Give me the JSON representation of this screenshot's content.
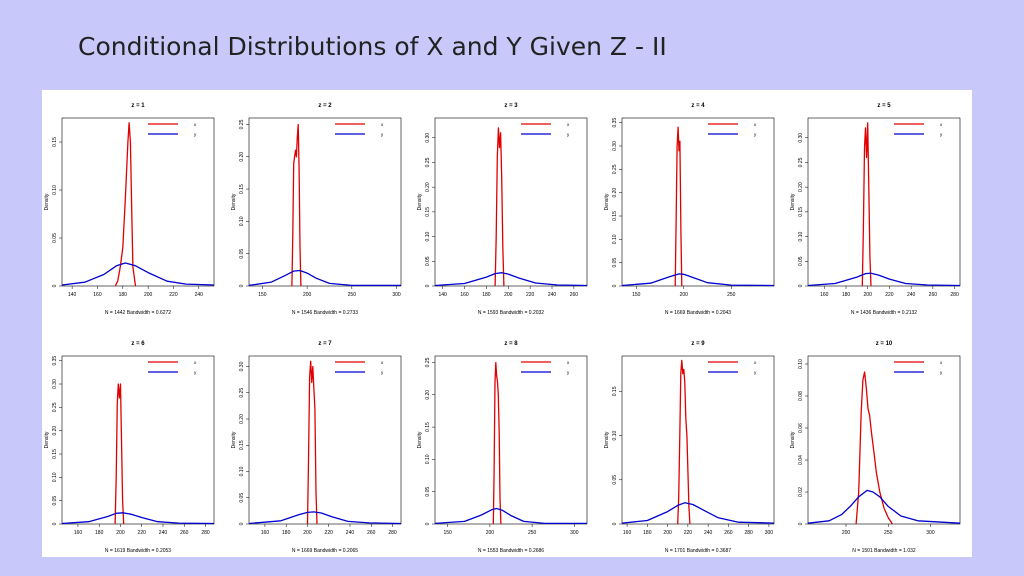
{
  "slide": {
    "title": "Conditional Distributions of X and Y Given Z - II"
  },
  "legend_entries": [
    "x",
    "y"
  ],
  "chart_data": [
    {
      "type": "line",
      "title": "z = 1",
      "ylabel": "Density",
      "subtitle": "N = 1442   Bandwidth = 0.6272",
      "xticks": [
        140,
        160,
        180,
        200,
        220,
        240
      ],
      "xlim": [
        132,
        252
      ],
      "yticks": [
        0.0,
        0.05,
        0.1,
        0.15
      ],
      "ylim": [
        0,
        0.175
      ],
      "series": [
        {
          "name": "x",
          "color": "#e00000",
          "x": [
            174,
            176,
            178,
            180,
            182,
            184,
            185,
            186,
            187,
            188,
            190
          ],
          "y": [
            0,
            0.005,
            0.02,
            0.04,
            0.09,
            0.15,
            0.17,
            0.15,
            0.08,
            0.02,
            0
          ]
        },
        {
          "name": "y",
          "color": "#0000d0",
          "x": [
            132,
            150,
            165,
            175,
            182,
            190,
            200,
            215,
            230,
            252
          ],
          "y": [
            0.001,
            0.004,
            0.012,
            0.021,
            0.024,
            0.021,
            0.014,
            0.005,
            0.002,
            0.001
          ]
        }
      ]
    },
    {
      "type": "line",
      "title": "z = 2",
      "ylabel": "Density",
      "subtitle": "N = 1546   Bandwidth = 0.2733",
      "xticks": [
        150,
        200,
        250,
        300
      ],
      "xlim": [
        135,
        305
      ],
      "yticks": [
        0.0,
        0.05,
        0.1,
        0.15,
        0.2,
        0.25
      ],
      "ylim": [
        0,
        0.26
      ],
      "series": [
        {
          "name": "x",
          "color": "#e00000",
          "x": [
            183,
            184,
            185,
            186,
            187,
            188,
            189,
            190,
            191,
            192,
            193
          ],
          "y": [
            0,
            0.08,
            0.19,
            0.2,
            0.21,
            0.2,
            0.23,
            0.25,
            0.18,
            0.06,
            0
          ]
        },
        {
          "name": "y",
          "color": "#0000d0",
          "x": [
            135,
            160,
            175,
            185,
            192,
            200,
            210,
            225,
            250,
            305
          ],
          "y": [
            0.001,
            0.006,
            0.016,
            0.023,
            0.024,
            0.02,
            0.012,
            0.004,
            0.001,
            0.001
          ]
        }
      ]
    },
    {
      "type": "line",
      "title": "z = 3",
      "ylabel": "Density",
      "subtitle": "N = 1593   Bandwidth = 0.2032",
      "xticks": [
        140,
        160,
        180,
        200,
        220,
        240,
        260
      ],
      "xlim": [
        133,
        272
      ],
      "yticks": [
        0.0,
        0.05,
        0.1,
        0.15,
        0.2,
        0.25,
        0.3
      ],
      "ylim": [
        0,
        0.34
      ],
      "series": [
        {
          "name": "x",
          "color": "#e00000",
          "x": [
            188,
            189,
            190,
            191,
            192,
            193,
            194,
            195,
            196
          ],
          "y": [
            0,
            0.1,
            0.26,
            0.32,
            0.28,
            0.31,
            0.22,
            0.08,
            0
          ]
        },
        {
          "name": "y",
          "color": "#0000d0",
          "x": [
            133,
            160,
            180,
            188,
            194,
            200,
            210,
            225,
            245,
            272
          ],
          "y": [
            0.001,
            0.005,
            0.018,
            0.025,
            0.027,
            0.024,
            0.016,
            0.006,
            0.002,
            0.001
          ]
        }
      ]
    },
    {
      "type": "line",
      "title": "z = 4",
      "ylabel": "Density",
      "subtitle": "N = 1669   Bandwidth = 0.2043",
      "xticks": [
        150,
        200,
        250
      ],
      "xlim": [
        135,
        295
      ],
      "yticks": [
        0.0,
        0.05,
        0.1,
        0.15,
        0.2,
        0.25,
        0.3,
        0.35
      ],
      "ylim": [
        0,
        0.36
      ],
      "series": [
        {
          "name": "x",
          "color": "#e00000",
          "x": [
            191,
            192,
            193,
            194,
            195,
            196,
            197,
            198
          ],
          "y": [
            0,
            0.15,
            0.3,
            0.34,
            0.29,
            0.31,
            0.12,
            0
          ]
        },
        {
          "name": "y",
          "color": "#0000d0",
          "x": [
            135,
            165,
            185,
            195,
            200,
            210,
            225,
            250,
            295
          ],
          "y": [
            0.001,
            0.006,
            0.02,
            0.026,
            0.025,
            0.018,
            0.007,
            0.002,
            0.001
          ]
        }
      ]
    },
    {
      "type": "line",
      "title": "z = 5",
      "ylabel": "Density",
      "subtitle": "N = 1436   Bandwidth = 0.2132",
      "xticks": [
        160,
        180,
        200,
        220,
        240,
        260,
        280
      ],
      "xlim": [
        145,
        285
      ],
      "yticks": [
        0.0,
        0.05,
        0.1,
        0.15,
        0.2,
        0.25,
        0.3
      ],
      "ylim": [
        0,
        0.34
      ],
      "series": [
        {
          "name": "x",
          "color": "#e00000",
          "x": [
            195,
            196,
            197,
            198,
            199,
            200,
            201,
            202,
            203
          ],
          "y": [
            0,
            0.12,
            0.28,
            0.32,
            0.26,
            0.33,
            0.2,
            0.06,
            0
          ]
        },
        {
          "name": "y",
          "color": "#0000d0",
          "x": [
            145,
            170,
            190,
            198,
            203,
            210,
            220,
            235,
            255,
            285
          ],
          "y": [
            0.001,
            0.005,
            0.018,
            0.025,
            0.026,
            0.022,
            0.014,
            0.005,
            0.002,
            0.001
          ]
        }
      ]
    },
    {
      "type": "line",
      "title": "z = 6",
      "ylabel": "Density",
      "subtitle": "N = 1619   Bandwidth = 0.2053",
      "xticks": [
        160,
        180,
        200,
        220,
        240,
        260,
        280
      ],
      "xlim": [
        145,
        288
      ],
      "yticks": [
        0.0,
        0.05,
        0.1,
        0.15,
        0.2,
        0.25,
        0.3,
        0.35
      ],
      "ylim": [
        0,
        0.36
      ],
      "series": [
        {
          "name": "x",
          "color": "#e00000",
          "x": [
            195,
            196,
            197,
            198,
            199,
            200,
            201,
            202,
            203
          ],
          "y": [
            0,
            0.1,
            0.26,
            0.3,
            0.27,
            0.3,
            0.18,
            0.05,
            0
          ]
        },
        {
          "name": "y",
          "color": "#0000d0",
          "x": [
            145,
            170,
            188,
            196,
            202,
            210,
            220,
            235,
            255,
            288
          ],
          "y": [
            0.001,
            0.005,
            0.016,
            0.023,
            0.024,
            0.021,
            0.014,
            0.005,
            0.002,
            0.001
          ]
        }
      ]
    },
    {
      "type": "line",
      "title": "z = 7",
      "ylabel": "Density",
      "subtitle": "N = 1669   Bandwidth = 0.2065",
      "xticks": [
        160,
        180,
        200,
        220,
        240,
        260,
        280
      ],
      "xlim": [
        145,
        288
      ],
      "yticks": [
        0.0,
        0.05,
        0.1,
        0.15,
        0.2,
        0.25,
        0.3
      ],
      "ylim": [
        0,
        0.32
      ],
      "series": [
        {
          "name": "x",
          "color": "#e00000",
          "x": [
            200,
            201,
            202,
            203,
            204,
            205,
            206,
            207,
            208,
            209
          ],
          "y": [
            0,
            0.12,
            0.28,
            0.31,
            0.27,
            0.3,
            0.26,
            0.22,
            0.06,
            0
          ]
        },
        {
          "name": "y",
          "color": "#0000d0",
          "x": [
            145,
            175,
            192,
            200,
            206,
            213,
            223,
            238,
            258,
            288
          ],
          "y": [
            0.001,
            0.006,
            0.018,
            0.022,
            0.023,
            0.021,
            0.014,
            0.005,
            0.002,
            0.001
          ]
        }
      ]
    },
    {
      "type": "line",
      "title": "z = 8",
      "ylabel": "Density",
      "subtitle": "N = 1553   Bandwidth = 0.2686",
      "xticks": [
        150,
        200,
        250,
        300
      ],
      "xlim": [
        135,
        315
      ],
      "yticks": [
        0.0,
        0.05,
        0.1,
        0.15,
        0.2,
        0.25
      ],
      "ylim": [
        0,
        0.26
      ],
      "series": [
        {
          "name": "x",
          "color": "#e00000",
          "x": [
            204,
            205,
            206,
            207,
            208,
            209,
            210,
            211,
            212,
            213
          ],
          "y": [
            0,
            0.08,
            0.22,
            0.25,
            0.23,
            0.22,
            0.2,
            0.14,
            0.04,
            0
          ]
        },
        {
          "name": "y",
          "color": "#0000d0",
          "x": [
            135,
            170,
            190,
            202,
            208,
            215,
            225,
            240,
            265,
            315
          ],
          "y": [
            0.001,
            0.004,
            0.014,
            0.022,
            0.024,
            0.021,
            0.013,
            0.004,
            0.001,
            0.001
          ]
        }
      ]
    },
    {
      "type": "line",
      "title": "z = 9",
      "ylabel": "Density",
      "subtitle": "N = 1701   Bandwidth = 0.3687",
      "xticks": [
        160,
        180,
        200,
        220,
        240,
        260,
        280,
        300
      ],
      "xlim": [
        155,
        305
      ],
      "yticks": [
        0.0,
        0.05,
        0.1,
        0.15
      ],
      "ylim": [
        0,
        0.19
      ],
      "series": [
        {
          "name": "x",
          "color": "#e00000",
          "x": [
            210,
            211,
            212,
            213,
            214,
            215,
            216,
            217,
            218,
            219,
            220,
            221,
            222
          ],
          "y": [
            0,
            0.03,
            0.1,
            0.17,
            0.185,
            0.17,
            0.175,
            0.16,
            0.12,
            0.1,
            0.06,
            0.02,
            0
          ]
        },
        {
          "name": "y",
          "color": "#0000d0",
          "x": [
            155,
            180,
            200,
            210,
            217,
            225,
            235,
            250,
            270,
            305
          ],
          "y": [
            0.001,
            0.004,
            0.014,
            0.021,
            0.024,
            0.022,
            0.016,
            0.007,
            0.002,
            0.001
          ]
        }
      ]
    },
    {
      "type": "line",
      "title": "z = 10",
      "ylabel": "Density",
      "subtitle": "N = 1501   Bandwidth = 1.032",
      "xticks": [
        200,
        250,
        300
      ],
      "xlim": [
        155,
        335
      ],
      "yticks": [
        0.0,
        0.02,
        0.04,
        0.06,
        0.08,
        0.1
      ],
      "ylim": [
        0,
        0.105
      ],
      "series": [
        {
          "name": "x",
          "color": "#e00000",
          "x": [
            212,
            215,
            218,
            220,
            222,
            224,
            226,
            228,
            230,
            233,
            236,
            240,
            245,
            250,
            255
          ],
          "y": [
            0,
            0.02,
            0.07,
            0.09,
            0.095,
            0.085,
            0.072,
            0.068,
            0.058,
            0.045,
            0.032,
            0.02,
            0.01,
            0.004,
            0
          ]
        },
        {
          "name": "y",
          "color": "#0000d0",
          "x": [
            155,
            180,
            195,
            205,
            215,
            225,
            232,
            240,
            250,
            265,
            285,
            335
          ],
          "y": [
            0.0005,
            0.002,
            0.006,
            0.011,
            0.017,
            0.021,
            0.02,
            0.017,
            0.011,
            0.005,
            0.002,
            0.0005
          ]
        }
      ]
    }
  ]
}
